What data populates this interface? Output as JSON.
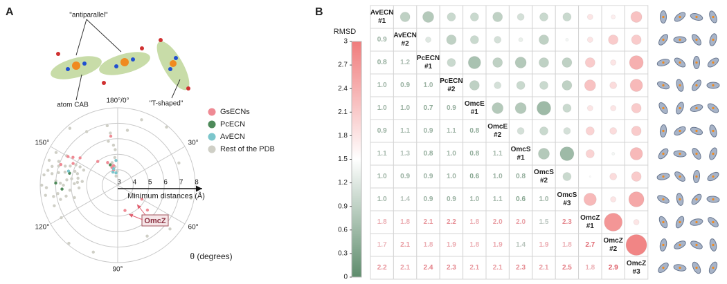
{
  "panels": [
    "A",
    "B"
  ],
  "annotations": [
    "\"antiparallel\"",
    "atom CAB",
    "\"T-shaped\""
  ],
  "chart_data": [
    {
      "type": "polar-scatter",
      "r_label": "Minimum distances (Å)",
      "theta_label": "θ (degrees)",
      "callout": "OmcZ",
      "rlim": [
        3,
        8
      ],
      "rticks": [
        3,
        4,
        5,
        6,
        7,
        8
      ],
      "thetaticks": [
        {
          "value": 0,
          "label": "180°/0°"
        },
        {
          "value": 30,
          "label": "30°"
        },
        {
          "value": 60,
          "label": "60°"
        },
        {
          "value": 90,
          "label": "90°"
        },
        {
          "value": 120,
          "label": "120°"
        },
        {
          "value": 150,
          "label": "150°"
        }
      ],
      "legend": "right",
      "series": [
        {
          "name": "GsECNs",
          "color": "#ef8a94",
          "theta": [
            171,
            170,
            172,
            168,
            174,
            151,
            150,
            148,
            153,
            176,
            160,
            60,
            82,
            65,
            145
          ],
          "r": [
            4.2,
            4.4,
            4.0,
            4.6,
            4.3,
            6.4,
            6.7,
            6.2,
            6.0,
            6.2,
            5.0,
            4.8,
            4.7,
            5.5,
            6.9
          ]
        },
        {
          "name": "PcECN",
          "color": "#4e8a5a",
          "theta": [
            133,
            142,
            170,
            136
          ],
          "r": [
            6.6,
            6.2,
            4.4,
            7.0
          ]
        },
        {
          "name": "AvECN",
          "color": "#7cc6cc",
          "theta": [
            173,
            176,
            143,
            170,
            178
          ],
          "r": [
            4.1,
            3.8,
            6.3,
            3.9,
            4.6
          ]
        },
        {
          "name": "Rest of the PDB",
          "color": "#cfcfc6",
          "theta": [
            128,
            130,
            132,
            134,
            135,
            136,
            137,
            138,
            139,
            140,
            141,
            142,
            143,
            144,
            145,
            146,
            147,
            148,
            149,
            150,
            127,
            129,
            131,
            133,
            126,
            136,
            138,
            140,
            142,
            144,
            146,
            148,
            135,
            131,
            133,
            139,
            143,
            145,
            137,
            141,
            175,
            176,
            177,
            178,
            174,
            176,
            179,
            173,
            177,
            175,
            10,
            20,
            35,
            50,
            65,
            75,
            100,
            110,
            160,
            165,
            5,
            120
          ],
          "r": [
            6.8,
            7.2,
            6.1,
            7.6,
            6.5,
            5.8,
            7.0,
            6.3,
            7.8,
            5.6,
            6.9,
            6.2,
            7.4,
            5.9,
            6.6,
            7.1,
            5.4,
            6.0,
            7.5,
            6.8,
            5.9,
            6.4,
            7.7,
            5.5,
            7.3,
            6.7,
            5.3,
            7.3,
            6.5,
            7.0,
            6.3,
            5.7,
            7.9,
            6.9,
            6.6,
            6.0,
            5.7,
            7.7,
            5.6,
            7.6,
            3.6,
            4.2,
            4.8,
            5.3,
            5.9,
            6.4,
            3.9,
            4.5,
            5.6,
            6.9,
            7.5,
            7.9,
            7.2,
            7.8,
            7.4,
            6.8,
            7.6,
            7.9,
            7.8,
            7.0,
            6.6,
            7.2
          ]
        }
      ]
    },
    {
      "type": "correlation-matrix",
      "colorbar_label": "RMSD",
      "ylim": [
        0,
        3
      ],
      "yticks": [
        0,
        0.3,
        0.6,
        0.9,
        1.2,
        1.5,
        1.8,
        2.1,
        2.4,
        2.7,
        3
      ],
      "colorscale": [
        "#5e8c6c",
        "#ffffff",
        "#f07c7c"
      ],
      "labels": [
        {
          "name": "AvECN",
          "num": "#1"
        },
        {
          "name": "AvECN",
          "num": "#2"
        },
        {
          "name": "PcECN",
          "num": "#1"
        },
        {
          "name": "PcECN",
          "num": "#2"
        },
        {
          "name": "OmcE",
          "num": "#1"
        },
        {
          "name": "OmcE",
          "num": "#2"
        },
        {
          "name": "OmcS",
          "num": "#1"
        },
        {
          "name": "OmcS",
          "num": "#2"
        },
        {
          "name": "OmcS",
          "num": "#3"
        },
        {
          "name": "OmcZ",
          "num": "#1"
        },
        {
          "name": "OmcZ",
          "num": "#2"
        },
        {
          "name": "OmcZ",
          "num": "#3"
        }
      ],
      "values": [
        [],
        [
          0.9
        ],
        [
          0.8,
          1.2
        ],
        [
          1.0,
          0.9,
          1.0
        ],
        [
          1.0,
          1.0,
          0.7,
          0.9
        ],
        [
          0.9,
          1.1,
          0.9,
          1.1,
          0.8
        ],
        [
          1.1,
          1.3,
          0.8,
          1.0,
          0.8,
          1.1
        ],
        [
          1.0,
          0.9,
          0.9,
          1.0,
          0.6,
          1.0,
          0.8
        ],
        [
          1.0,
          1.4,
          0.9,
          0.9,
          1.0,
          1.1,
          0.6,
          1.0
        ],
        [
          1.8,
          1.8,
          2.1,
          2.2,
          1.8,
          2.0,
          2.0,
          1.5,
          2.3
        ],
        [
          1.7,
          2.1,
          1.8,
          1.9,
          1.8,
          1.9,
          1.4,
          1.9,
          1.8,
          2.7
        ],
        [
          2.2,
          2.1,
          2.4,
          2.3,
          2.1,
          2.1,
          2.3,
          2.1,
          2.5,
          1.8,
          2.9
        ]
      ],
      "value_labels": [
        [],
        [
          "0.9"
        ],
        [
          "0.8",
          "1.2"
        ],
        [
          "1.0",
          "0.9",
          "1.0"
        ],
        [
          "1.0",
          "1.0",
          "0.7",
          "0.9"
        ],
        [
          "0.9",
          "1.1",
          "0.9",
          "1.1",
          "0.8"
        ],
        [
          "1.1",
          "1.3",
          "0.8",
          "1.0",
          "0.8",
          "1.1"
        ],
        [
          "1.0",
          "0.9",
          "0.9",
          "1.0",
          "0.6",
          "1.0",
          "0.8"
        ],
        [
          "1.0",
          "1.4",
          "0.9",
          "0.9",
          "1.0",
          "1.1",
          "0.6",
          "1.0"
        ],
        [
          "1.8",
          "1.8",
          "2.1",
          "2.2",
          "1.8",
          "2.0",
          "2.0",
          "1.5",
          "2.3"
        ],
        [
          "1.7",
          "2.1",
          "1.8",
          "1.9",
          "1.8",
          "1.9",
          "1.4",
          "1.9",
          "1.8",
          "2.7"
        ],
        [
          "2.2",
          "2.1",
          "2.4",
          "2.3",
          "2.1",
          "2.1",
          "2.3",
          "2.1",
          "2.5",
          "1.8",
          "2.9"
        ]
      ]
    }
  ]
}
